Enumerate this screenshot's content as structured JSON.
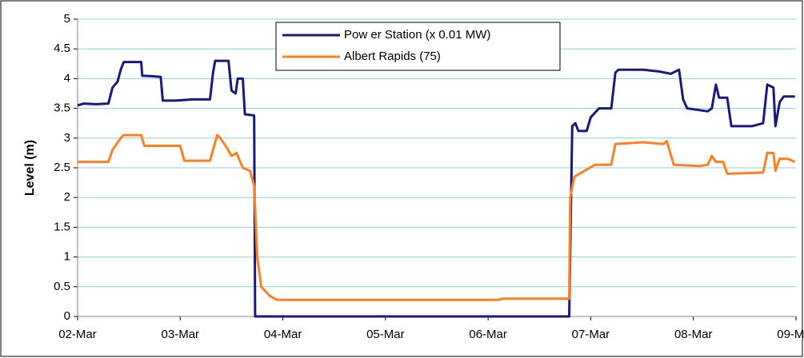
{
  "chart_data": {
    "type": "line",
    "y_label": "Level (m)",
    "xlim": [
      0,
      7
    ],
    "xticks": [
      {
        "value": 0,
        "label": "02-Mar"
      },
      {
        "value": 1,
        "label": "03-Mar"
      },
      {
        "value": 2,
        "label": "04-Mar"
      },
      {
        "value": 3,
        "label": "05-Mar"
      },
      {
        "value": 4,
        "label": "06-Mar"
      },
      {
        "value": 5,
        "label": "07-Mar"
      },
      {
        "value": 6,
        "label": "08-Mar"
      },
      {
        "value": 7,
        "label": "09-Mar"
      }
    ],
    "ylim": [
      0,
      5
    ],
    "yticks": [
      0,
      0.5,
      1,
      1.5,
      2,
      2.5,
      3,
      3.5,
      4,
      4.5,
      5
    ],
    "grid": true,
    "series": [
      {
        "name": "Pow er Station (x 0.01 MW)",
        "color": "#1a1a7e",
        "x": [
          0,
          0.06,
          0.18,
          0.3,
          0.34,
          0.39,
          0.42,
          0.45,
          0.57,
          0.62,
          0.63,
          0.73,
          0.81,
          0.83,
          0.96,
          1.12,
          1.29,
          1.32,
          1.34,
          1.47,
          1.5,
          1.54,
          1.56,
          1.61,
          1.63,
          1.72,
          1.73,
          4.79,
          4.82,
          4.85,
          4.88,
          4.96,
          5.0,
          5.08,
          5.2,
          5.24,
          5.27,
          5.51,
          5.67,
          5.78,
          5.86,
          5.9,
          5.94,
          6.06,
          6.14,
          6.18,
          6.22,
          6.25,
          6.33,
          6.37,
          6.57,
          6.68,
          6.72,
          6.78,
          6.8,
          6.84,
          6.88,
          6.99
        ],
        "values": [
          3.55,
          3.58,
          3.57,
          3.58,
          3.85,
          3.95,
          4.15,
          4.28,
          4.28,
          4.28,
          4.05,
          4.04,
          4.03,
          3.63,
          3.63,
          3.65,
          3.65,
          4.1,
          4.3,
          4.3,
          3.8,
          3.75,
          4.0,
          4.0,
          3.4,
          3.38,
          0,
          0,
          3.2,
          3.25,
          3.12,
          3.12,
          3.35,
          3.5,
          3.5,
          4.1,
          4.15,
          4.15,
          4.12,
          4.08,
          4.15,
          3.65,
          3.5,
          3.47,
          3.45,
          3.5,
          3.9,
          3.68,
          3.68,
          3.2,
          3.2,
          3.25,
          3.9,
          3.85,
          3.2,
          3.6,
          3.7,
          3.7
        ]
      },
      {
        "name": "Albert Rapids (75)",
        "color": "#ff7f1e",
        "x": [
          0,
          0.18,
          0.3,
          0.34,
          0.42,
          0.45,
          0.62,
          0.65,
          0.81,
          1.0,
          1.04,
          1.29,
          1.32,
          1.36,
          1.39,
          1.45,
          1.5,
          1.55,
          1.61,
          1.68,
          1.72,
          1.75,
          1.79,
          1.87,
          1.94,
          4.1,
          4.14,
          4.79,
          4.8,
          4.84,
          5.04,
          5.2,
          5.24,
          5.51,
          5.71,
          5.74,
          5.81,
          6.06,
          6.14,
          6.18,
          6.22,
          6.29,
          6.33,
          6.68,
          6.72,
          6.78,
          6.8,
          6.84,
          6.92,
          6.99
        ],
        "values": [
          2.6,
          2.6,
          2.6,
          2.8,
          3.0,
          3.05,
          3.05,
          2.87,
          2.87,
          2.87,
          2.62,
          2.62,
          2.8,
          3.05,
          3.0,
          2.85,
          2.7,
          2.75,
          2.5,
          2.45,
          2.2,
          1.0,
          0.5,
          0.35,
          0.28,
          0.28,
          0.3,
          0.3,
          2.0,
          2.35,
          2.55,
          2.55,
          2.9,
          2.93,
          2.9,
          2.95,
          2.55,
          2.53,
          2.55,
          2.7,
          2.6,
          2.6,
          2.4,
          2.42,
          2.75,
          2.75,
          2.45,
          2.65,
          2.65,
          2.6
        ]
      }
    ]
  }
}
